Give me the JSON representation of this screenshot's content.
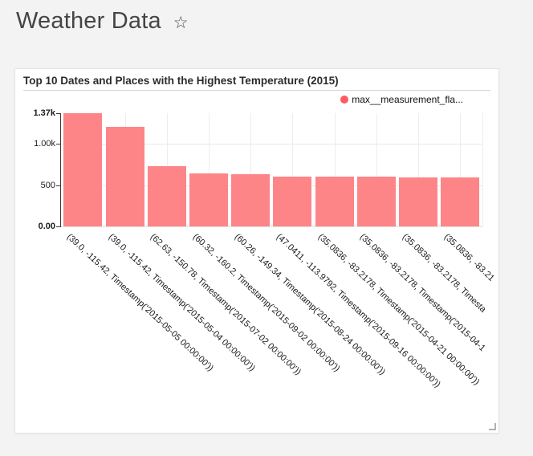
{
  "page": {
    "title": "Weather Data",
    "favorite_icon": "☆"
  },
  "colors": {
    "bar": "#fd8588",
    "legend_dot": "#ff5a5f"
  },
  "chart_data": {
    "type": "bar",
    "title": "Top 10 Dates and Places with the Highest Temperature (2015)",
    "legend_position": "top-right",
    "grid": true,
    "x_label_rotation_deg": 43,
    "ylim": [
      0,
      1370
    ],
    "y_axis": {
      "ticks": [
        {
          "label": "1.37k",
          "value": 1370,
          "bold": true
        },
        {
          "label": "1.00k",
          "value": 1000,
          "bold": false
        },
        {
          "label": "500",
          "value": 500,
          "bold": false
        },
        {
          "label": "0.00",
          "value": 0,
          "bold": true
        }
      ]
    },
    "categories": [
      "(39.0, -115.42, Timestamp('2015-05-05 00:00:00'))",
      "(39.0, -115.42, Timestamp('2015-05-04 00:00:00'))",
      "(62.63, -150.78, Timestamp('2015-07-02 00:00:00'))",
      "(60.32, -160.2, Timestamp('2015-09-02 00:00:00'))",
      "(60.26, -149.34, Timestamp('2015-08-24 00:00:00'))",
      "(47.0411, -113.9792, Timestamp('2015-09-16 00:00:00'))",
      "(35.0836, -83.2178, Timestamp('2015-04-21 00:00:00'))",
      "(35.0836, -83.2178, Timestamp('2015-04-1",
      "(35.0836, -83.2178, Timesta",
      "(35.0836, -83.21"
    ],
    "series": [
      {
        "name": "max__measurement_fla...",
        "values": [
          1370,
          1210,
          730,
          645,
          635,
          605,
          602,
          600,
          598,
          596
        ]
      }
    ]
  }
}
